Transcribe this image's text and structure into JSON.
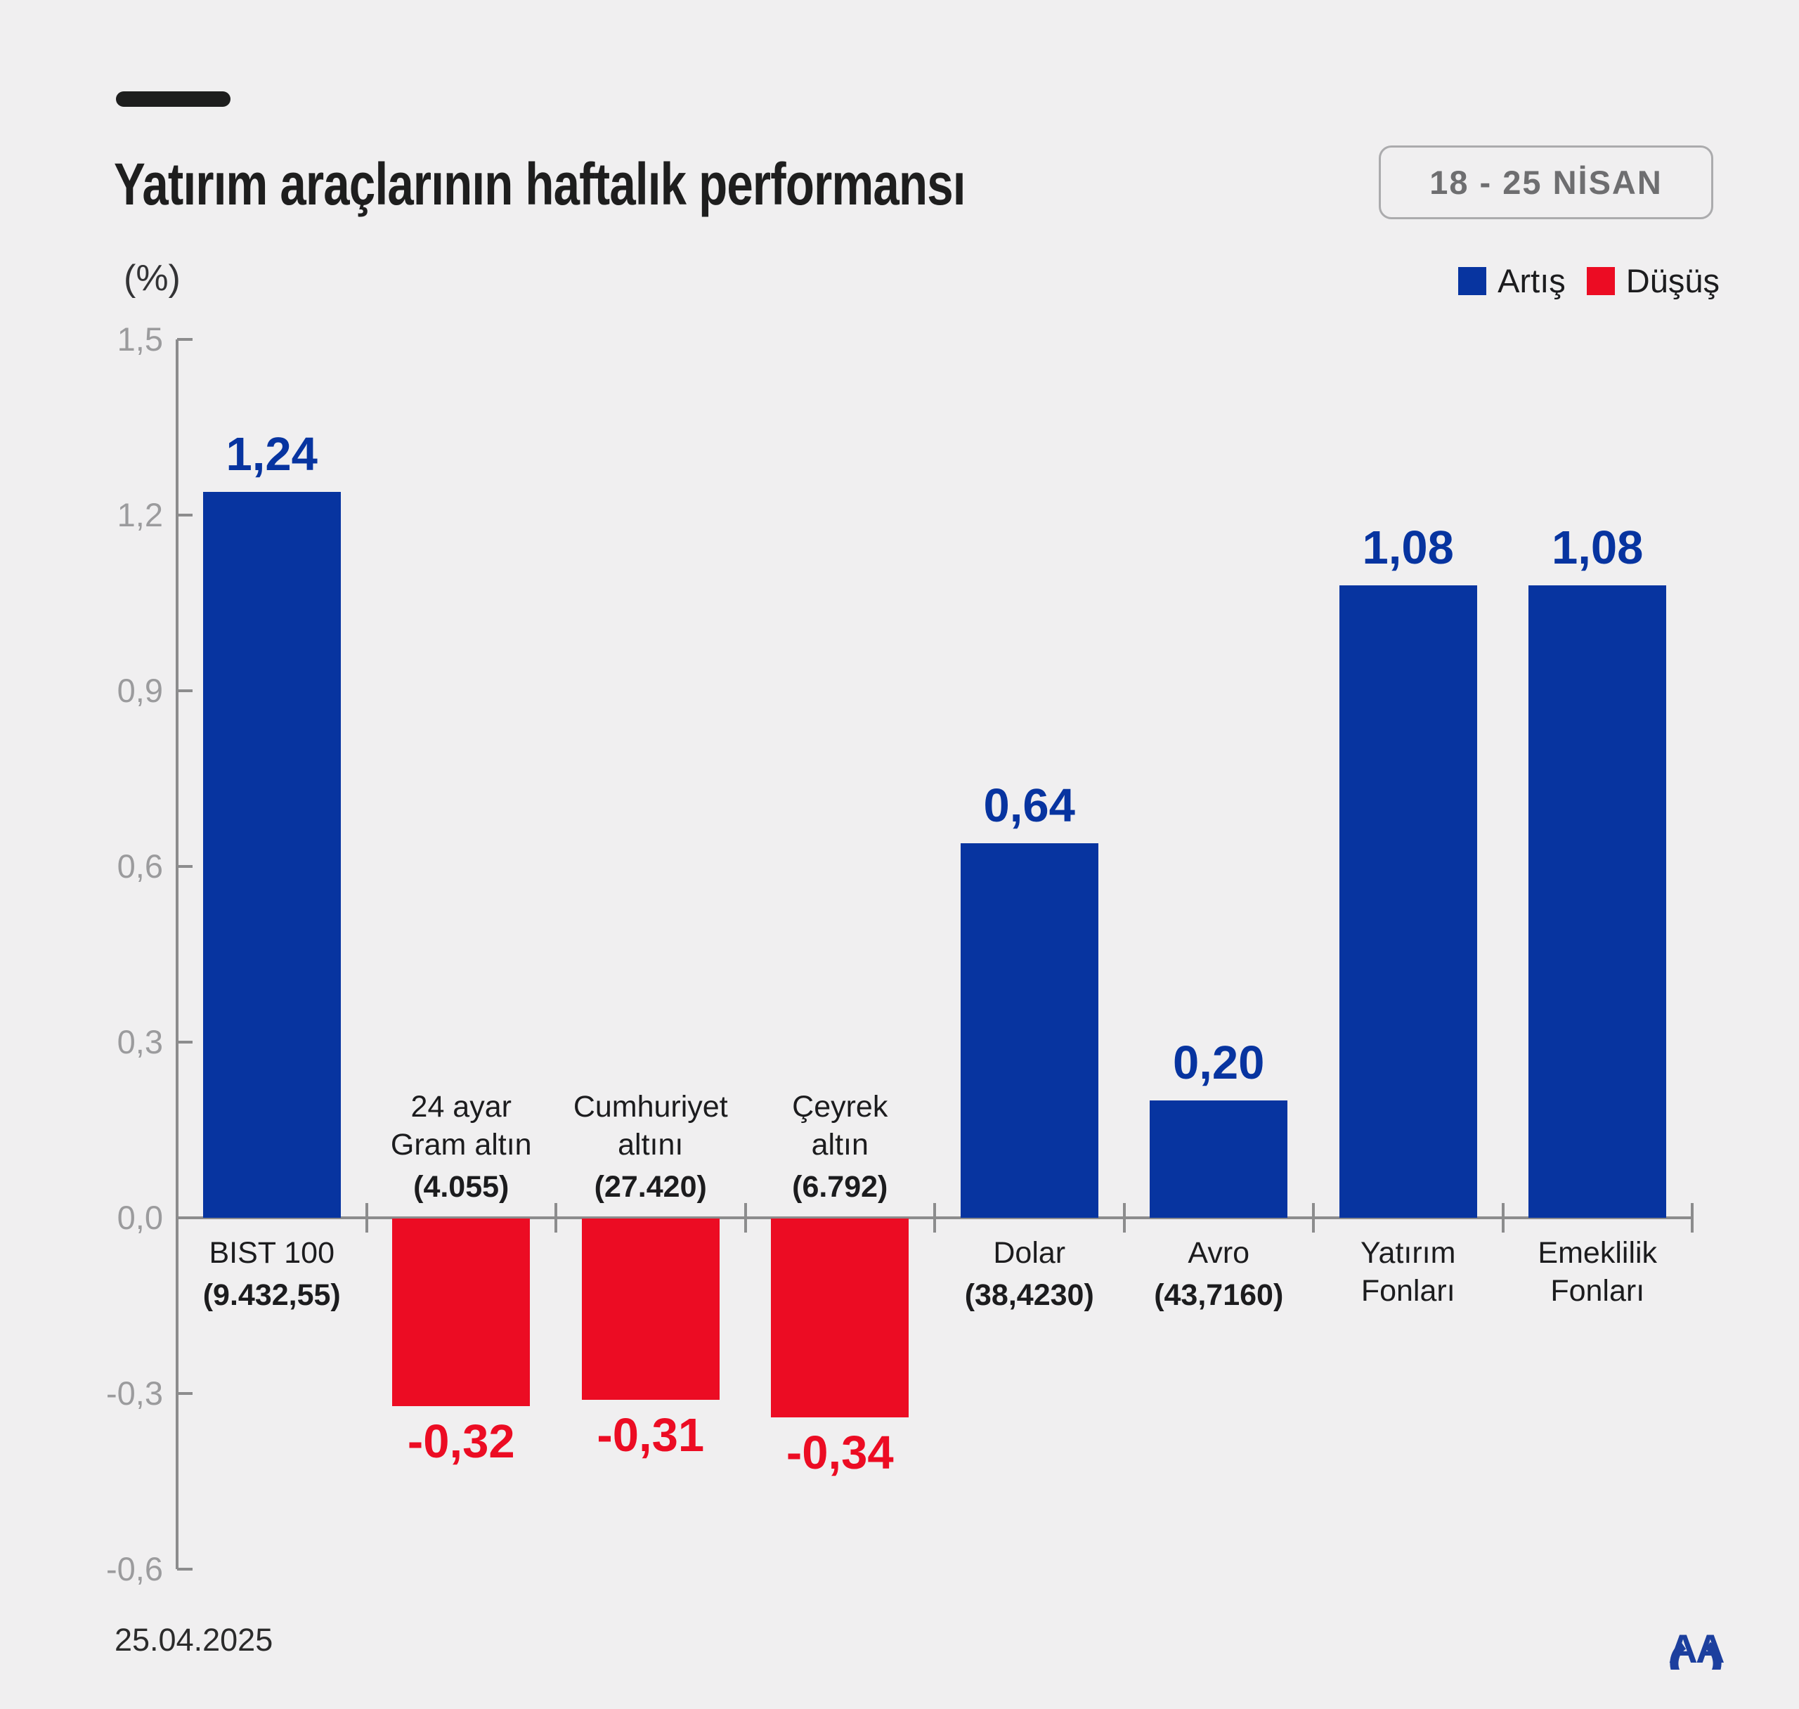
{
  "header": {
    "title": "Yatırım araçlarının haftalık performansı",
    "period": "18 - 25 NİSAN"
  },
  "legend": {
    "items": [
      {
        "label": "Artış",
        "color": "#0734A0"
      },
      {
        "label": "Düşüş",
        "color": "#EC0C23"
      }
    ]
  },
  "chart_data": {
    "type": "bar",
    "title": "Yatırım araçlarının haftalık performansı",
    "period": "18 - 25 NİSAN",
    "ylabel": "(%)",
    "ylim": [
      -0.6,
      1.5
    ],
    "grid": false,
    "legend_position": "top-right",
    "yticks": {
      "values": [
        1.5,
        1.2,
        0.9,
        0.6,
        0.3,
        0.0,
        -0.3,
        -0.6
      ],
      "labels": [
        "1,5",
        "1,2",
        "0,9",
        "0,6",
        "0,3",
        "0,0",
        "-0,3",
        "-0,6"
      ]
    },
    "categories": [
      "BIST 100",
      "24 ayar Gram altın",
      "Cumhuriyet altını",
      "Çeyrek altın",
      "Dolar",
      "Avro",
      "Yatırım Fonları",
      "Emeklilik Fonları"
    ],
    "values": [
      1.24,
      -0.32,
      -0.31,
      -0.34,
      0.64,
      0.2,
      1.08,
      1.08
    ],
    "colors": {
      "positive": "#0734A0",
      "negative": "#EC0C23",
      "axis": "#8C8C8D",
      "tick_label": "#9B9B9D",
      "category_label": "#1C1C1E"
    },
    "bars": [
      {
        "name_lines": [
          "BIST 100"
        ],
        "sublabel": "(9.432,55)",
        "value": 1.24,
        "value_label": "1,24",
        "direction": "up"
      },
      {
        "name_lines": [
          "24 ayar",
          "Gram altın"
        ],
        "sublabel": "(4.055)",
        "value": -0.32,
        "value_label": "-0,32",
        "direction": "down"
      },
      {
        "name_lines": [
          "Cumhuriyet",
          "altını"
        ],
        "sublabel": "(27.420)",
        "value": -0.31,
        "value_label": "-0,31",
        "direction": "down"
      },
      {
        "name_lines": [
          "Çeyrek",
          "altın"
        ],
        "sublabel": "(6.792)",
        "value": -0.34,
        "value_label": "-0,34",
        "direction": "down"
      },
      {
        "name_lines": [
          "Dolar"
        ],
        "sublabel": "(38,4230)",
        "value": 0.64,
        "value_label": "0,64",
        "direction": "up"
      },
      {
        "name_lines": [
          "Avro"
        ],
        "sublabel": "(43,7160)",
        "value": 0.2,
        "value_label": "0,20",
        "direction": "up"
      },
      {
        "name_lines": [
          "Yatırım",
          "Fonları"
        ],
        "sublabel": "",
        "value": 1.08,
        "value_label": "1,08",
        "direction": "up"
      },
      {
        "name_lines": [
          "Emeklilik",
          "Fonları"
        ],
        "sublabel": "",
        "value": 1.08,
        "value_label": "1,08",
        "direction": "up"
      }
    ]
  },
  "footer": {
    "date": "25.04.2025",
    "logo_text": "AA"
  }
}
